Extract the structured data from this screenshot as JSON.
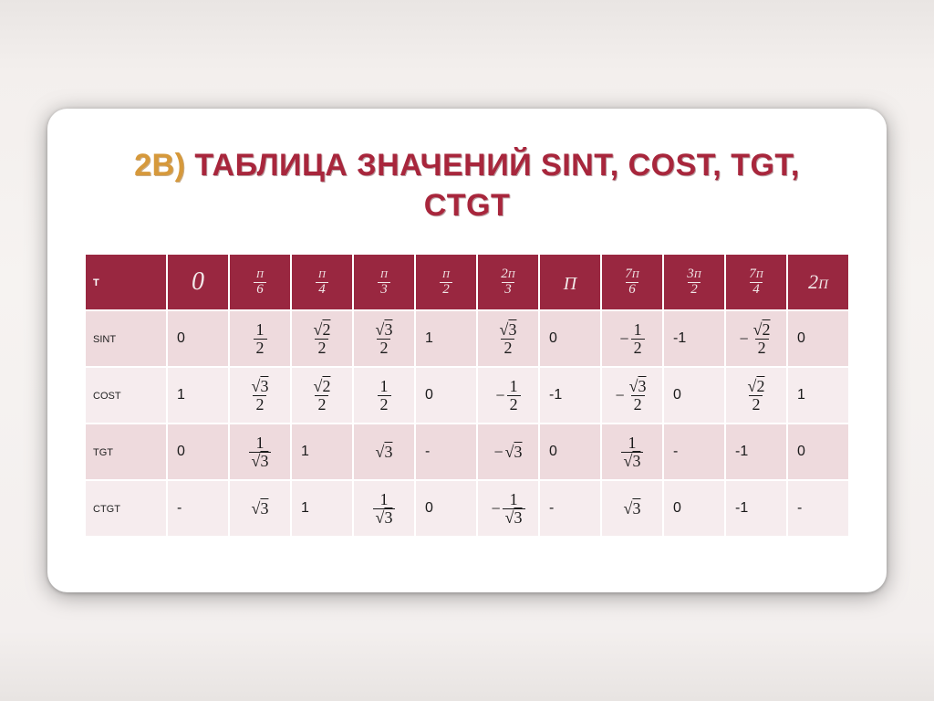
{
  "title": {
    "label": "2b)",
    "rest_line1": "Таблица значений sint, cost, tgt,",
    "rest_line2": "ctgt"
  },
  "table": {
    "corner": "t",
    "header_labels": [
      "0",
      "π/6",
      "π/4",
      "π/3",
      "π/2",
      "2π/3",
      "π",
      "7π/6",
      "3π/2",
      "7π/4",
      "2π"
    ],
    "row_labels": [
      "sint",
      "cost",
      "tgt",
      "ctgt"
    ],
    "data": {
      "sint": {
        "c0": {
          "kind": "plain",
          "text": "0"
        },
        "c1": {
          "kind": "frac",
          "num": "1",
          "den": "2"
        },
        "c2": {
          "kind": "frac",
          "num": "√2",
          "den": "2"
        },
        "c3": {
          "kind": "frac",
          "num": "√3",
          "den": "2"
        },
        "c4": {
          "kind": "plain",
          "text": "1"
        },
        "c5": {
          "kind": "frac",
          "num": "√3",
          "den": "2"
        },
        "c6": {
          "kind": "plain",
          "text": "0"
        },
        "c7": {
          "kind": "negfrac",
          "num": "1",
          "den": "2"
        },
        "c8": {
          "kind": "plain",
          "text": "-1"
        },
        "c9": {
          "kind": "negfrac",
          "num": "√2",
          "den": "2"
        },
        "c10": {
          "kind": "plain",
          "text": "0"
        }
      },
      "cost": {
        "c0": {
          "kind": "plain",
          "text": "1"
        },
        "c1": {
          "kind": "frac",
          "num": "√3",
          "den": "2"
        },
        "c2": {
          "kind": "frac",
          "num": "√2",
          "den": "2"
        },
        "c3": {
          "kind": "frac",
          "num": "1",
          "den": "2"
        },
        "c4": {
          "kind": "plain",
          "text": "0"
        },
        "c5": {
          "kind": "negfrac",
          "num": "1",
          "den": "2"
        },
        "c6": {
          "kind": "plain",
          "text": "-1"
        },
        "c7": {
          "kind": "negfrac",
          "num": "√3",
          "den": "2"
        },
        "c8": {
          "kind": "plain",
          "text": "0"
        },
        "c9": {
          "kind": "frac",
          "num": "√2",
          "den": "2"
        },
        "c10": {
          "kind": "plain",
          "text": "1"
        }
      },
      "tgt": {
        "c0": {
          "kind": "plain",
          "text": "0"
        },
        "c1": {
          "kind": "frac",
          "num": "1",
          "den": "√3"
        },
        "c2": {
          "kind": "plain",
          "text": "1"
        },
        "c3": {
          "kind": "math",
          "text": "√3"
        },
        "c4": {
          "kind": "plain",
          "text": "-"
        },
        "c5": {
          "kind": "negmath",
          "text": "√3"
        },
        "c6": {
          "kind": "plain",
          "text": "0"
        },
        "c7": {
          "kind": "frac",
          "num": "1",
          "den": "√3"
        },
        "c8": {
          "kind": "plain",
          "text": "-"
        },
        "c9": {
          "kind": "plain",
          "text": "-1"
        },
        "c10": {
          "kind": "plain",
          "text": "0"
        }
      },
      "ctgt": {
        "c0": {
          "kind": "plain",
          "text": "-"
        },
        "c1": {
          "kind": "math",
          "text": "√3"
        },
        "c2": {
          "kind": "plain",
          "text": "1"
        },
        "c3": {
          "kind": "frac",
          "num": "1",
          "den": "√3"
        },
        "c4": {
          "kind": "plain",
          "text": "0"
        },
        "c5": {
          "kind": "negfrac",
          "num": "1",
          "den": "√3"
        },
        "c6": {
          "kind": "plain",
          "text": "-"
        },
        "c7": {
          "kind": "math",
          "text": "√3"
        },
        "c8": {
          "kind": "plain",
          "text": "0"
        },
        "c9": {
          "kind": "plain",
          "text": "-1"
        },
        "c10": {
          "kind": "plain",
          "text": "-"
        }
      }
    }
  },
  "style": {
    "header_bg": "#992740",
    "row_odd_bg": "#eedadd",
    "row_even_bg": "#f6ecee",
    "title_label_color": "#d6993b",
    "title_rest_color": "#a8263c",
    "card_bg": "#ffffff",
    "slide_w": 1024,
    "slide_h": 768,
    "title_fontsize": 34,
    "header_fontsize": 22,
    "body_fontsize": 18
  }
}
